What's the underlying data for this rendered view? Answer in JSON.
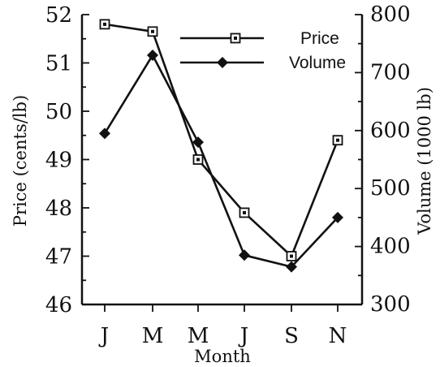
{
  "chart_data": {
    "type": "line",
    "categories": [
      "J",
      "M",
      "M",
      "J",
      "S",
      "N"
    ],
    "series": [
      {
        "name": "Price",
        "axis": "left",
        "marker": "open-square",
        "values": [
          51.8,
          51.65,
          49.0,
          47.9,
          47.0,
          49.4
        ]
      },
      {
        "name": "Volume",
        "axis": "right",
        "marker": "filled-diamond",
        "values": [
          595,
          730,
          580,
          385,
          365,
          450
        ]
      }
    ],
    "xlabel": "Month",
    "ylabel": "Price (cents/lb)",
    "y2label": "Volume (1000 lb)",
    "ylim": [
      46,
      52
    ],
    "y2lim": [
      300,
      800
    ],
    "yticks": [
      "46",
      "47",
      "48",
      "49",
      "50",
      "51",
      "52"
    ],
    "y2ticks": [
      "300",
      "400",
      "500",
      "600",
      "700",
      "800"
    ],
    "legend": {
      "placement": "top-right",
      "entries": [
        "Price",
        "Volume"
      ]
    },
    "grid": false,
    "colors": {
      "line": "#111111",
      "background": "#ffffff"
    }
  }
}
